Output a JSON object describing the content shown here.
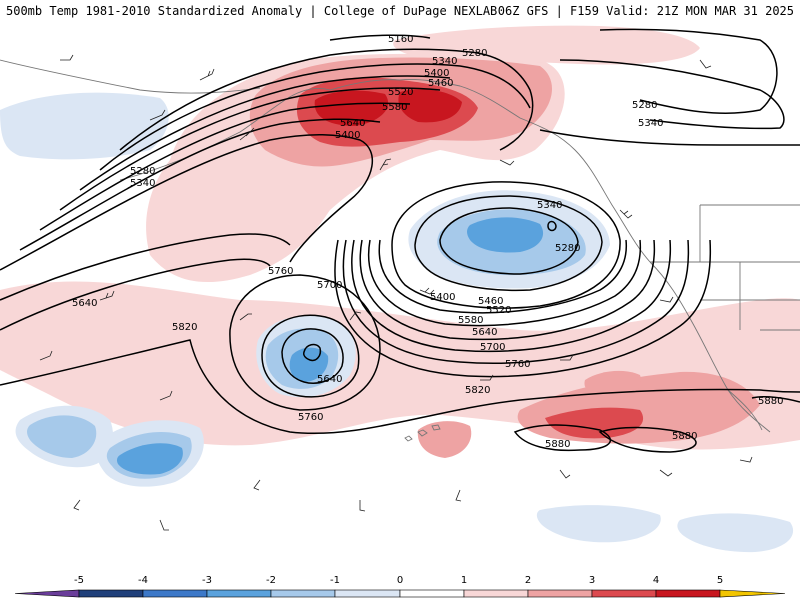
{
  "header": {
    "left_text": "500mb Temp 1981-2010 Standardized Anomaly | College of DuPage NEXLAB",
    "right_text": "06Z GFS | F159 Valid: 21Z MON MAR 31 2025"
  },
  "colors": {
    "ocean": "#ffffff",
    "coastline": "#777777",
    "contour": "#000000",
    "anom_neg1": "#dbe6f4",
    "anom_neg2": "#a6c9ea",
    "anom_neg3": "#5aa2dd",
    "anom_pos1": "#f8d7d7",
    "anom_pos2": "#eea3a3",
    "anom_pos3": "#dc4a4f",
    "anom_pos4": "#c8161f"
  },
  "contour_labels": [
    "5160",
    "5280",
    "5340",
    "5400",
    "5460",
    "5520",
    "5580",
    "5640",
    "5280",
    "5340",
    "5400",
    "5280",
    "5340",
    "5340",
    "5280",
    "5400",
    "5460",
    "5520",
    "5580",
    "5640",
    "5700",
    "5760",
    "5760",
    "5700",
    "5640",
    "5820",
    "5640",
    "5760",
    "5820",
    "5880",
    "5880",
    "5880"
  ],
  "legend": {
    "ticks": [
      "-5",
      "-4",
      "-3",
      "-2",
      "-1",
      "0",
      "1",
      "2",
      "3",
      "4",
      "5"
    ],
    "colors": [
      "#6a3d9a",
      "#1f3f7a",
      "#3c78c8",
      "#5aa2dd",
      "#a6c9ea",
      "#dbe6f4",
      "#ffffff",
      "#f8d7d7",
      "#eea3a3",
      "#dc4a4f",
      "#c8161f",
      "#8b0a14",
      "#f2c500"
    ]
  }
}
